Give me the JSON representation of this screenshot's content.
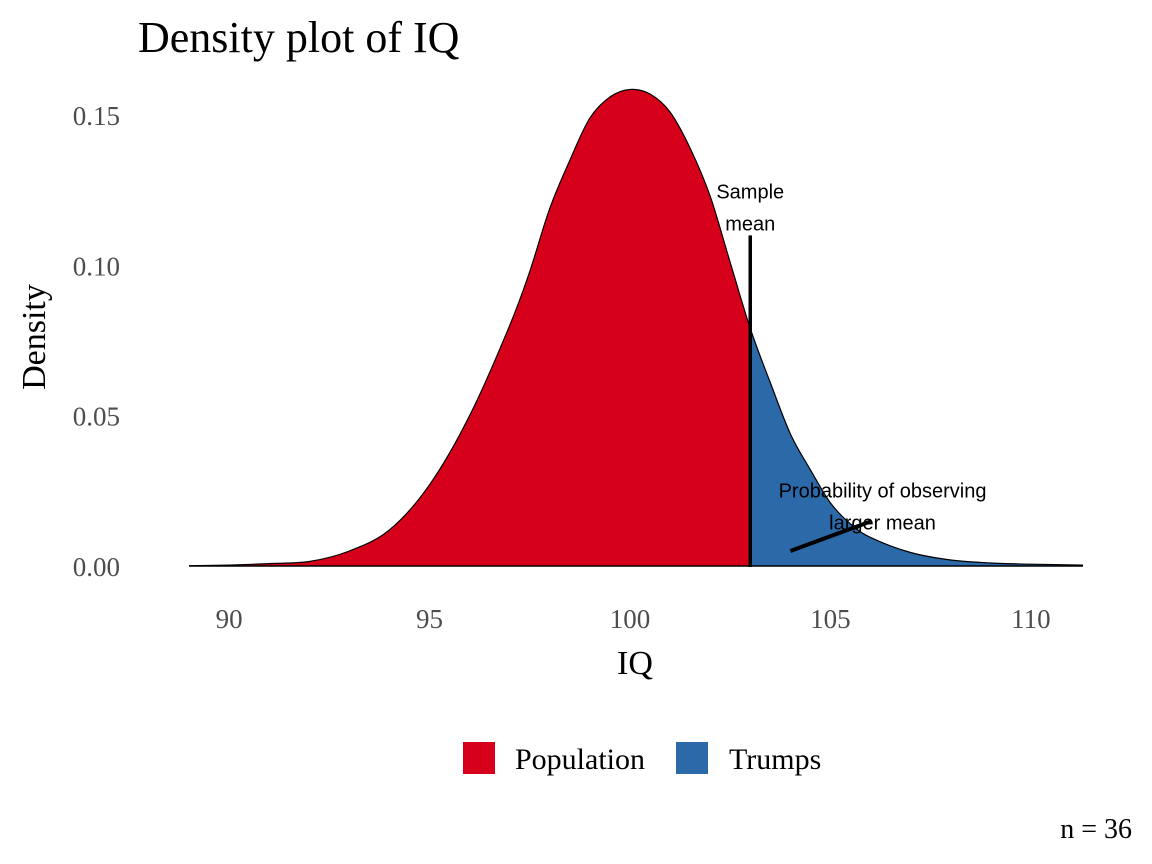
{
  "chart_data": {
    "type": "area",
    "title": "Density plot of IQ",
    "xlabel": "IQ",
    "ylabel": "Density",
    "xlim": [
      88.9,
      111.4
    ],
    "ylim": [
      0,
      0.16
    ],
    "x_ticks": [
      90,
      95,
      100,
      105,
      110
    ],
    "x_tick_labels": [
      "90",
      "95",
      "100",
      "105",
      "110"
    ],
    "y_ticks": [
      0,
      0.05,
      0.1,
      0.15
    ],
    "y_tick_labels": [
      "0.00",
      "0.05",
      "0.10",
      "0.15"
    ],
    "grid": false,
    "legend_position": "bottom",
    "split_x": 103,
    "x": [
      89,
      90,
      91,
      92,
      93,
      94,
      95,
      96,
      97,
      97.5,
      98,
      98.5,
      99,
      99.5,
      100,
      100.5,
      101,
      101.5,
      102,
      102.5,
      103,
      103.5,
      104,
      104.5,
      105,
      105.5,
      106,
      107,
      108,
      109,
      110,
      111.3
    ],
    "y": [
      0.0001,
      0.0003,
      0.0008,
      0.0015,
      0.005,
      0.012,
      0.027,
      0.05,
      0.08,
      0.098,
      0.119,
      0.135,
      0.149,
      0.156,
      0.1585,
      0.157,
      0.151,
      0.139,
      0.123,
      0.101,
      0.079,
      0.061,
      0.044,
      0.032,
      0.021,
      0.014,
      0.0095,
      0.0045,
      0.002,
      0.001,
      0.0006,
      0.0003
    ],
    "series": [
      {
        "name": "Population",
        "color": "#d7001a",
        "range": [
          89,
          103
        ]
      },
      {
        "name": "Trumps",
        "color": "#2b69a8",
        "range": [
          103,
          111.3
        ]
      }
    ],
    "annotations": [
      {
        "lines": [
          "Sample",
          "mean"
        ],
        "x": 103,
        "y_label": 0.12,
        "line_y": [
          0,
          0.11
        ]
      },
      {
        "lines": [
          "Probability of observing",
          "larger mean"
        ],
        "x": 106.3,
        "y_label": 0.0205,
        "line_from": [
          104,
          0.005
        ],
        "line_to": [
          106,
          0.0148
        ]
      }
    ],
    "caption": "n = 36"
  }
}
